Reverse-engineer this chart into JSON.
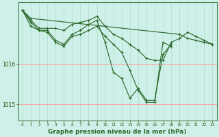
{
  "background_color": "#cff0e8",
  "grid_color_h": "#ff9999",
  "grid_color_v": "#aaddcc",
  "line_color": "#2d6a2d",
  "xlabel": "Graphe pression niveau de la mer (hPa)",
  "xlabel_fontsize": 6.5,
  "ylabel_ticks": [
    1015,
    1016
  ],
  "xlim": [
    -0.5,
    23.5
  ],
  "ylim": [
    1014.6,
    1017.55
  ],
  "xticks": [
    0,
    1,
    2,
    3,
    4,
    5,
    6,
    7,
    8,
    9,
    10,
    11,
    12,
    13,
    14,
    15,
    16,
    17,
    18,
    19,
    20,
    21,
    22,
    23
  ],
  "ytick_fontsize": 5.5,
  "xtick_fontsize": 4.2,
  "series": [
    [
      1017.35,
      1017.15,
      null,
      null,
      null,
      null,
      null,
      null,
      null,
      null,
      null,
      null,
      null,
      null,
      null,
      null,
      null,
      null,
      null,
      1016.75,
      1016.65,
      1016.6,
      1016.55,
      1016.5
    ],
    [
      1017.35,
      1017.1,
      1016.9,
      1016.9,
      1016.9,
      1016.85,
      1017.0,
      1017.05,
      1017.1,
      1017.2,
      1016.95,
      1016.75,
      1016.65,
      1016.5,
      1016.35,
      1016.15,
      1016.1,
      1016.1,
      1016.55,
      1016.65,
      1016.8,
      1016.7,
      1016.6,
      1016.5
    ],
    [
      1017.35,
      1017.05,
      1016.85,
      1016.85,
      1016.6,
      1016.5,
      1016.75,
      1016.85,
      1017.0,
      1017.1,
      1016.55,
      1015.8,
      1015.65,
      1015.15,
      1015.4,
      1015.1,
      1015.1,
      1016.25,
      1016.5,
      null,
      null,
      null,
      null,
      null
    ],
    [
      1017.35,
      1016.95,
      1016.85,
      1016.8,
      1016.55,
      1016.45,
      1016.7,
      1016.75,
      1016.85,
      1016.95,
      1016.7,
      1016.5,
      1016.3,
      1015.85,
      1015.35,
      1015.05,
      1015.05,
      1016.55,
      1016.45,
      null,
      null,
      null,
      null,
      null
    ]
  ]
}
